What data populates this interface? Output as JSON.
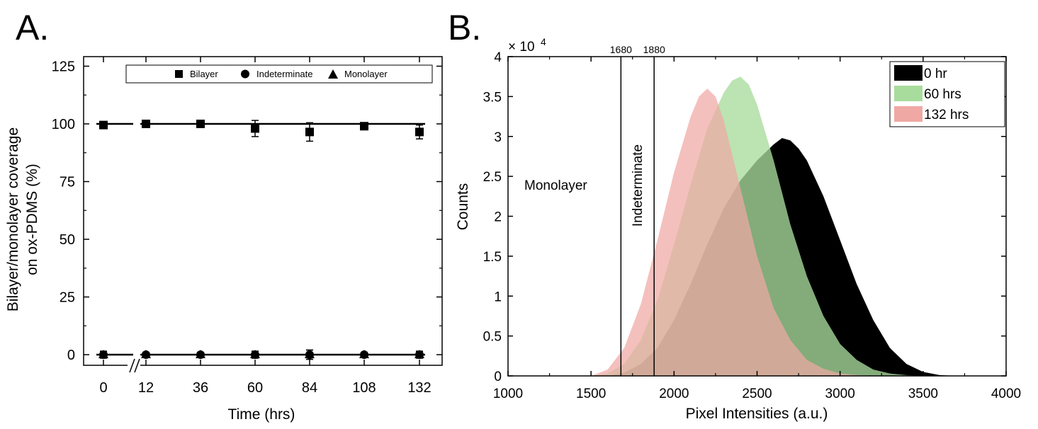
{
  "chart_data": [
    {
      "panel_label": "A.",
      "type": "scatter",
      "xlabel": "Time (hrs)",
      "ylabel_line1": "Bilayer/monolayer coverage",
      "ylabel_line2": "on ox-PDMS (%)",
      "x_ticks": [
        "0",
        "12",
        "36",
        "60",
        "84",
        "108",
        "132"
      ],
      "y_ticks": [
        "0",
        "25",
        "50",
        "75",
        "100",
        "125"
      ],
      "ylim": [
        -8,
        130
      ],
      "axis_break": "between 0 and 12",
      "legend": {
        "position": "top",
        "entries": [
          "Bilayer",
          "Indeterminate",
          "Monolayer"
        ]
      },
      "series": [
        {
          "name": "Bilayer",
          "marker": "square",
          "x": [
            0,
            12,
            36,
            60,
            84,
            108,
            132
          ],
          "y": [
            99.5,
            100,
            100,
            98,
            96.5,
            99,
            96.5
          ],
          "err": [
            1.5,
            1,
            1,
            3.5,
            4,
            1,
            3
          ]
        },
        {
          "name": "Indeterminate",
          "marker": "circle",
          "x": [
            0,
            12,
            36,
            60,
            84,
            108,
            132
          ],
          "y": [
            0,
            0,
            0,
            0,
            0,
            0,
            0
          ],
          "err": [
            1.5,
            1,
            1,
            1.5,
            2,
            1,
            1.5
          ]
        },
        {
          "name": "Monolayer",
          "marker": "triangle",
          "x": [
            0,
            12,
            36,
            60,
            84,
            108,
            132
          ],
          "y": [
            0,
            0,
            0,
            0,
            0,
            0,
            0
          ],
          "err": [
            1.5,
            1,
            1,
            1.5,
            2,
            1,
            1.5
          ]
        }
      ],
      "fit_lines": [
        {
          "y": 100
        },
        {
          "y": 0
        }
      ]
    },
    {
      "panel_label": "B.",
      "type": "area",
      "xlabel": "Pixel Intensities (a.u.)",
      "ylabel": "Counts",
      "y_multiplier": "× 10",
      "y_multiplier_exp": "4",
      "xlim": [
        1000,
        4000
      ],
      "ylim": [
        0,
        40000
      ],
      "x_ticks": [
        "1000",
        "1500",
        "2000",
        "2500",
        "3000",
        "3500",
        "4000"
      ],
      "y_ticks": [
        "0",
        "0.5",
        "1",
        "1.5",
        "2",
        "2.5",
        "3",
        "3.5",
        "4"
      ],
      "threshold_lines": [
        {
          "x": 1680,
          "label": "1680"
        },
        {
          "x": 1880,
          "label": "1880"
        }
      ],
      "region_labels": [
        "Monolayer",
        "Indeterminate"
      ],
      "legend": {
        "position": "top-right",
        "entries": [
          "0 hr",
          "60 hrs",
          "132 hrs"
        ]
      },
      "series": [
        {
          "name": "0 hr",
          "color": "#000000",
          "x": [
            1600,
            1700,
            1800,
            1900,
            2000,
            2100,
            2200,
            2300,
            2400,
            2500,
            2600,
            2650,
            2700,
            2750,
            2800,
            2900,
            3000,
            3100,
            3200,
            3300,
            3400,
            3500,
            3600,
            3700
          ],
          "y": [
            0,
            400,
            1500,
            3500,
            7000,
            11500,
            16500,
            21000,
            24500,
            27000,
            29000,
            29800,
            29500,
            28500,
            27000,
            22500,
            17000,
            11500,
            7000,
            3500,
            1500,
            500,
            100,
            0
          ]
        },
        {
          "name": "60 hrs",
          "color": "#a8dc9c",
          "x": [
            1500,
            1600,
            1700,
            1800,
            1900,
            2000,
            2100,
            2200,
            2300,
            2350,
            2400,
            2450,
            2500,
            2600,
            2700,
            2800,
            2900,
            3000,
            3100,
            3200,
            3300,
            3400,
            3500
          ],
          "y": [
            0,
            300,
            1500,
            4500,
            9500,
            16500,
            24000,
            31000,
            35500,
            37000,
            37500,
            36500,
            34000,
            27000,
            19000,
            12500,
            7500,
            4000,
            2000,
            800,
            300,
            100,
            0
          ]
        },
        {
          "name": "132 hrs",
          "color": "#f0a8a4",
          "x": [
            1500,
            1600,
            1700,
            1800,
            1900,
            2000,
            2100,
            2150,
            2200,
            2250,
            2300,
            2400,
            2500,
            2600,
            2700,
            2800,
            2900,
            3000,
            3100,
            3200,
            3300
          ],
          "y": [
            0,
            800,
            3500,
            9000,
            17000,
            25500,
            32500,
            35000,
            36000,
            35000,
            32000,
            23500,
            15000,
            8500,
            4500,
            2000,
            900,
            300,
            100,
            30,
            0
          ]
        }
      ]
    }
  ]
}
